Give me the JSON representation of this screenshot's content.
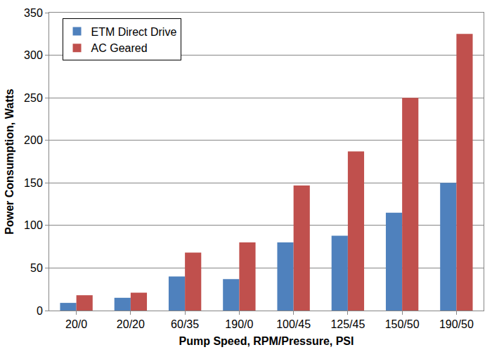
{
  "chart_data": {
    "type": "bar",
    "x_label": "Pump Speed, RPM/Pressure, PSI",
    "y_label": "Power Consumption, Watts",
    "categories": [
      "20/0",
      "20/20",
      "60/35",
      "190/0",
      "100/45",
      "125/45",
      "150/50",
      "190/50"
    ],
    "series": [
      {
        "name": "ETM Direct Drive",
        "color": "#4f81bd",
        "values": [
          9,
          15,
          40,
          37,
          80,
          88,
          115,
          150
        ]
      },
      {
        "name": "AC Geared",
        "color": "#c0504d",
        "values": [
          18,
          21,
          68,
          80,
          147,
          187,
          250,
          325
        ]
      }
    ],
    "ylim": [
      0,
      350
    ],
    "yticks": [
      0,
      50,
      100,
      150,
      200,
      250,
      300,
      350
    ],
    "grid": true,
    "legend": "upper left"
  }
}
